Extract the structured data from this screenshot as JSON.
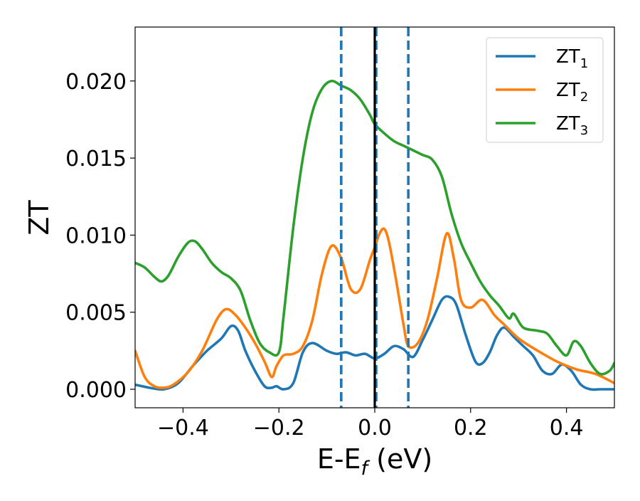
{
  "chart_data": {
    "type": "line",
    "title": "",
    "xlabel": "E-E",
    "xlabel_sub": "f",
    "xlabel_suffix": " (eV)",
    "ylabel": "ZT",
    "xlim": [
      -0.5,
      0.5
    ],
    "ylim": [
      -0.0012,
      0.0235
    ],
    "xticks": [
      -0.4,
      -0.2,
      0.0,
      0.2,
      0.4
    ],
    "xtick_labels": [
      "−0.4",
      "−0.2",
      "0.0",
      "0.2",
      "0.4"
    ],
    "yticks": [
      0.0,
      0.005,
      0.01,
      0.015,
      0.02
    ],
    "ytick_labels": [
      "0.000",
      "0.005",
      "0.010",
      "0.015",
      "0.020"
    ],
    "grid": false,
    "legend_position": "top-right",
    "vertical_lines": [
      {
        "x": -0.07,
        "style": "dashed",
        "color": "#1f77b4"
      },
      {
        "x": 0.003,
        "style": "dashed",
        "color": "#1f77b4"
      },
      {
        "x": 0.07,
        "style": "dashed",
        "color": "#1f77b4"
      },
      {
        "x": 0.0,
        "style": "solid",
        "color": "#000000"
      }
    ],
    "series": [
      {
        "name": "ZT",
        "name_sub": "1",
        "color": "#1f77b4",
        "x": [
          -0.5,
          -0.47,
          -0.44,
          -0.41,
          -0.38,
          -0.35,
          -0.32,
          -0.3,
          -0.285,
          -0.27,
          -0.25,
          -0.23,
          -0.215,
          -0.205,
          -0.19,
          -0.17,
          -0.15,
          -0.13,
          -0.1,
          -0.08,
          -0.06,
          -0.04,
          -0.02,
          0.0,
          0.02,
          0.04,
          0.06,
          0.08,
          0.1,
          0.12,
          0.14,
          0.155,
          0.17,
          0.19,
          0.21,
          0.225,
          0.24,
          0.255,
          0.27,
          0.29,
          0.31,
          0.33,
          0.35,
          0.37,
          0.39,
          0.41,
          0.43,
          0.45,
          0.47,
          0.5
        ],
        "y": [
          0.0003,
          0.0001,
          0.0,
          0.0004,
          0.0015,
          0.0025,
          0.0033,
          0.0041,
          0.0038,
          0.0025,
          0.0012,
          0.0002,
          0.0001,
          0.0002,
          0.0,
          0.0004,
          0.0024,
          0.003,
          0.0025,
          0.0023,
          0.0024,
          0.0022,
          0.0023,
          0.002,
          0.0023,
          0.0028,
          0.0026,
          0.0021,
          0.0032,
          0.0045,
          0.0058,
          0.006,
          0.0055,
          0.0035,
          0.0018,
          0.0017,
          0.0024,
          0.0035,
          0.004,
          0.0034,
          0.0028,
          0.0022,
          0.0012,
          0.001,
          0.0016,
          0.0012,
          0.0003,
          0.0,
          0.0,
          0.0
        ]
      },
      {
        "name": "ZT",
        "name_sub": "2",
        "color": "#ff7f0e",
        "x": [
          -0.5,
          -0.48,
          -0.46,
          -0.44,
          -0.42,
          -0.39,
          -0.36,
          -0.33,
          -0.31,
          -0.29,
          -0.27,
          -0.25,
          -0.23,
          -0.215,
          -0.205,
          -0.19,
          -0.17,
          -0.15,
          -0.13,
          -0.11,
          -0.09,
          -0.07,
          -0.05,
          -0.03,
          -0.01,
          0.0,
          0.01,
          0.02,
          0.03,
          0.045,
          0.06,
          0.07,
          0.09,
          0.11,
          0.13,
          0.15,
          0.165,
          0.18,
          0.2,
          0.225,
          0.25,
          0.27,
          0.3,
          0.34,
          0.38,
          0.42,
          0.46,
          0.5
        ],
        "y": [
          0.0025,
          0.0008,
          0.0002,
          0.0001,
          0.0003,
          0.0011,
          0.0025,
          0.0045,
          0.0052,
          0.0048,
          0.004,
          0.003,
          0.0018,
          0.0008,
          0.0015,
          0.0022,
          0.0023,
          0.0028,
          0.0045,
          0.0075,
          0.0093,
          0.0085,
          0.0065,
          0.0065,
          0.0084,
          0.0092,
          0.0101,
          0.0104,
          0.0095,
          0.007,
          0.0042,
          0.0028,
          0.003,
          0.0045,
          0.0072,
          0.0101,
          0.0085,
          0.0058,
          0.0053,
          0.0058,
          0.0048,
          0.0042,
          0.0033,
          0.0025,
          0.0018,
          0.0013,
          0.001,
          0.0004
        ]
      },
      {
        "name": "ZT",
        "name_sub": "3",
        "color": "#2ca02c",
        "x": [
          -0.5,
          -0.48,
          -0.46,
          -0.445,
          -0.43,
          -0.41,
          -0.39,
          -0.375,
          -0.36,
          -0.34,
          -0.32,
          -0.3,
          -0.28,
          -0.26,
          -0.24,
          -0.22,
          -0.2,
          -0.19,
          -0.17,
          -0.15,
          -0.13,
          -0.11,
          -0.09,
          -0.07,
          -0.05,
          -0.03,
          -0.01,
          0.0,
          0.02,
          0.04,
          0.06,
          0.08,
          0.1,
          0.12,
          0.14,
          0.16,
          0.18,
          0.2,
          0.22,
          0.24,
          0.26,
          0.28,
          0.29,
          0.31,
          0.34,
          0.36,
          0.38,
          0.4,
          0.415,
          0.43,
          0.45,
          0.47,
          0.49,
          0.5
        ],
        "y": [
          0.0082,
          0.0079,
          0.0073,
          0.007,
          0.0074,
          0.0086,
          0.0095,
          0.0096,
          0.0091,
          0.0082,
          0.0076,
          0.0072,
          0.0064,
          0.0045,
          0.003,
          0.0024,
          0.0024,
          0.0048,
          0.0105,
          0.015,
          0.018,
          0.0195,
          0.02,
          0.0197,
          0.0194,
          0.0188,
          0.0178,
          0.0172,
          0.0166,
          0.0161,
          0.0158,
          0.0155,
          0.0152,
          0.0149,
          0.0138,
          0.0114,
          0.0095,
          0.0082,
          0.007,
          0.0061,
          0.0054,
          0.0046,
          0.0049,
          0.004,
          0.0038,
          0.0036,
          0.0028,
          0.0022,
          0.0031,
          0.0028,
          0.0017,
          0.001,
          0.0012,
          0.0017
        ]
      }
    ]
  }
}
